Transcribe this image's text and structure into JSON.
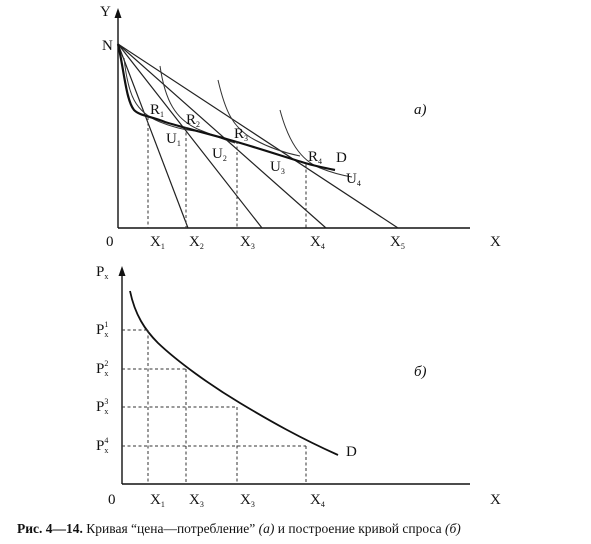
{
  "top_panel": {
    "y_axis_label": "Y",
    "x_axis_label": "X",
    "origin_label": "0",
    "intercept_label": "N",
    "panel_tag": "а)",
    "curve_label": "D",
    "points": [
      {
        "letter": "R",
        "sub": "1"
      },
      {
        "letter": "R",
        "sub": "2"
      },
      {
        "letter": "R",
        "sub": "3"
      },
      {
        "letter": "R",
        "sub": "4"
      }
    ],
    "indifference_curves": [
      {
        "letter": "U",
        "sub": "1"
      },
      {
        "letter": "U",
        "sub": "2"
      },
      {
        "letter": "U",
        "sub": "3"
      },
      {
        "letter": "U",
        "sub": "4"
      }
    ],
    "x_ticks": [
      {
        "letter": "X",
        "sub": "1"
      },
      {
        "letter": "X",
        "sub": "2"
      },
      {
        "letter": "X",
        "sub": "3"
      },
      {
        "letter": "X",
        "sub": "4"
      },
      {
        "letter": "X",
        "sub": "5"
      }
    ]
  },
  "bottom_panel": {
    "y_axis_label": {
      "letter": "P",
      "sub": "x"
    },
    "x_axis_label": "X",
    "origin_label": "0",
    "panel_tag": "б)",
    "curve_label": "D",
    "price_levels": [
      {
        "letter": "P",
        "sup": "1",
        "sub": "x"
      },
      {
        "letter": "P",
        "sup": "2",
        "sub": "x"
      },
      {
        "letter": "P",
        "sup": "3",
        "sub": "x"
      },
      {
        "letter": "P",
        "sup": "4",
        "sub": "x"
      }
    ],
    "x_ticks": [
      {
        "letter": "X",
        "sub": "1"
      },
      {
        "letter": "X",
        "sub": "3"
      },
      {
        "letter": "X",
        "sub": "3"
      },
      {
        "letter": "X",
        "sub": "4"
      }
    ]
  },
  "caption": {
    "number": "Рис. 4—14.",
    "text": "Кривая “цена—потребление”",
    "tag_a": "(а)",
    "middle": "и построение кривой спроса",
    "tag_b": "(б)"
  }
}
